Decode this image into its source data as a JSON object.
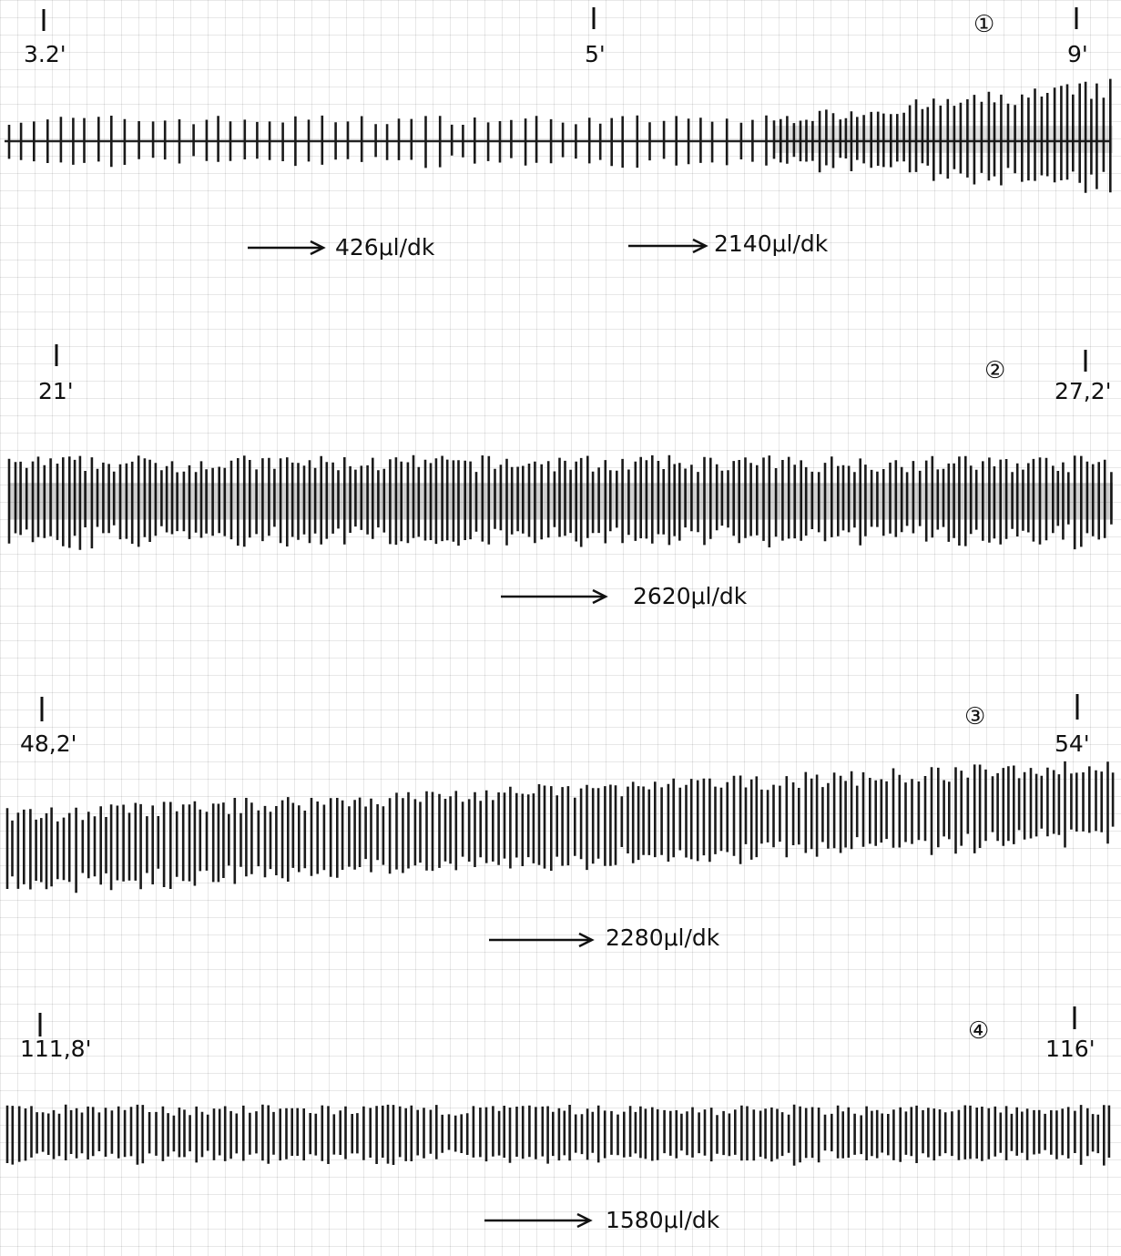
{
  "panels": [
    {
      "number": "①",
      "markers": [
        "3.2'",
        "5'",
        "9'"
      ],
      "rates": [
        "426μl/dk",
        "2140μl/dk"
      ]
    },
    {
      "number": "②",
      "markers": [
        "21'",
        "27,2'"
      ],
      "rates": [
        "2620μl/dk"
      ]
    },
    {
      "number": "③",
      "markers": [
        "48,2'",
        "54'"
      ],
      "rates": [
        "2280μl/dk"
      ]
    },
    {
      "number": "④",
      "markers": [
        "111,8'",
        "116'"
      ],
      "rates": [
        "1580μl/dk"
      ]
    }
  ]
}
